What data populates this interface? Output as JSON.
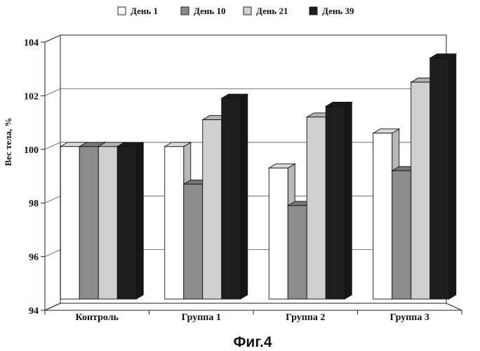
{
  "figure_caption": "Фиг.4",
  "chart_data": {
    "type": "bar",
    "title": "",
    "xlabel": "",
    "ylabel": "Вес тела, %",
    "ylim": [
      94,
      104
    ],
    "yticks": [
      94,
      96,
      98,
      100,
      102,
      104
    ],
    "grid": true,
    "legend_position": "top",
    "categories": [
      "Контроль",
      "Группа 1",
      "Группа 2",
      "Группа 3"
    ],
    "series": [
      {
        "name": "День 1",
        "color": "#ffffff",
        "values": [
          100.0,
          100.0,
          99.2,
          100.5
        ]
      },
      {
        "name": "День 10",
        "color": "#8c8c8c",
        "values": [
          100.0,
          98.6,
          97.8,
          99.1
        ]
      },
      {
        "name": "День 21",
        "color": "#d0d0d0",
        "values": [
          100.0,
          101.0,
          101.1,
          102.4
        ]
      },
      {
        "name": "День 39",
        "color": "#1e1e1e",
        "values": [
          100.0,
          101.8,
          101.5,
          103.3
        ]
      }
    ]
  }
}
